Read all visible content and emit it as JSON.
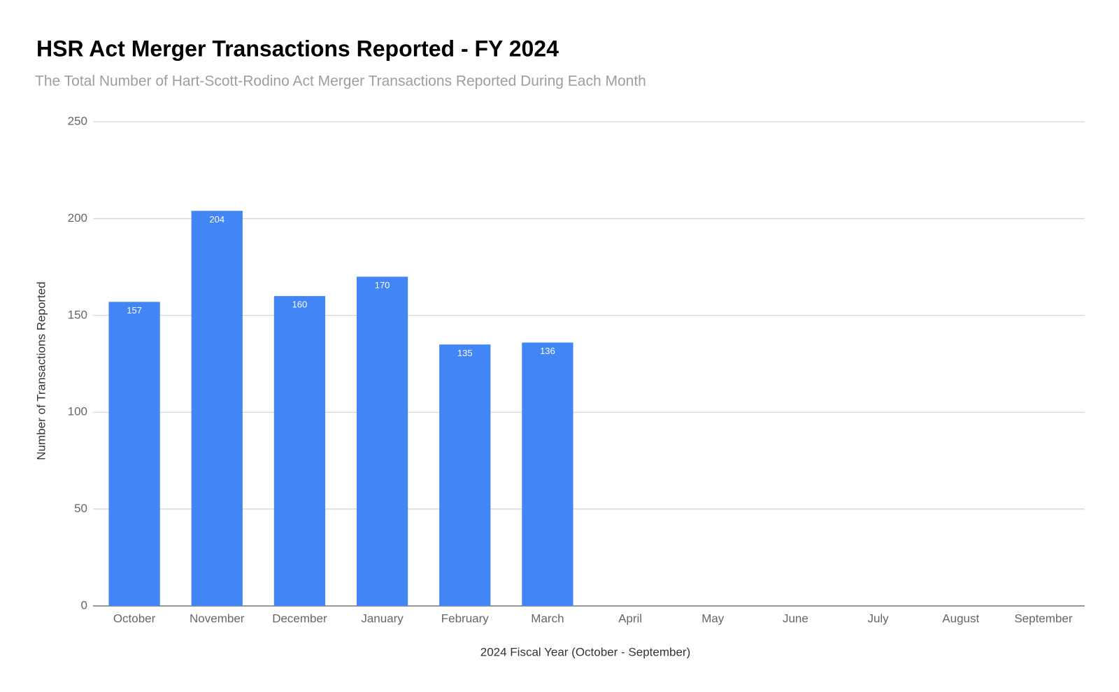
{
  "chart_data": {
    "type": "bar",
    "title": "HSR Act Merger Transactions Reported - FY 2024",
    "subtitle": "The Total Number of Hart-Scott-Rodino Act Merger Transactions Reported During Each Month",
    "x_label": "2024 Fiscal Year (October - September)",
    "y_label": "Number of Transactions Reported",
    "categories": [
      "October",
      "November",
      "December",
      "January",
      "February",
      "March",
      "April",
      "May",
      "June",
      "July",
      "August",
      "September"
    ],
    "values": [
      157,
      204,
      160,
      170,
      135,
      136,
      null,
      null,
      null,
      null,
      null,
      null
    ],
    "color": "#4285f4",
    "ylim": [
      0,
      250
    ],
    "yticks": [
      0,
      50,
      100,
      150,
      200,
      250
    ],
    "grid": true
  }
}
